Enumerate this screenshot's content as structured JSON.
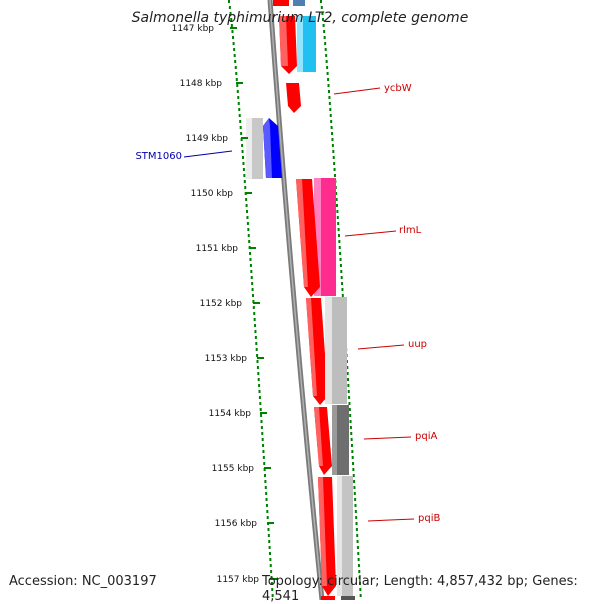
{
  "title": "Salmonella typhimurium LT2, complete genome",
  "accession": "Accession: NC_003197",
  "summary": "Topology: circular; Length: 4,857,432 bp; Genes: 4,541",
  "colors": {
    "forward_gene": "#ff0000",
    "reverse_gene": "#0000ff",
    "backbone": "#808080",
    "tick": "#008000",
    "label_red": "#cc0000",
    "label_blue": "#0000aa"
  },
  "axis": {
    "ticks": [
      "1147 kbp",
      "1148 kbp",
      "1149 kbp",
      "1150 kbp",
      "1151 kbp",
      "1152 kbp",
      "1153 kbp",
      "1154 kbp",
      "1155 kbp",
      "1156 kbp",
      "1157 kbp"
    ]
  },
  "gene_labels": [
    {
      "name": "ycbW",
      "color": "red"
    },
    {
      "name": "STM1060",
      "color": "blue"
    },
    {
      "name": "rlmL",
      "color": "red"
    },
    {
      "name": "uup",
      "color": "red"
    },
    {
      "name": "pqiA",
      "color": "red"
    },
    {
      "name": "pqiB",
      "color": "red"
    }
  ]
}
